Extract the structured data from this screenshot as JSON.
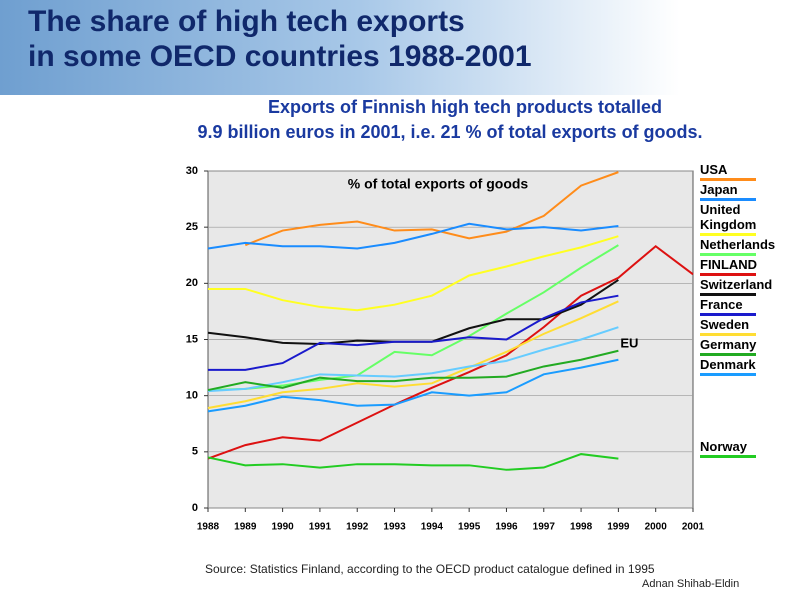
{
  "chart_data": {
    "type": "line",
    "title": [
      "The share of high tech exports",
      "in some OECD countries 1988-2001"
    ],
    "subtitle": [
      "Exports of Finnish high tech products totalled",
      "9.9 billion euros in 2001, i.e. 21 % of total exports of goods."
    ],
    "ylabel": "% of total exports of goods",
    "source": "Source: Statistics Finland, according to the OECD product catalogue defined in 1995",
    "author": "Adnan Shihab-Eldin",
    "x": [
      1988,
      1989,
      1990,
      1991,
      1992,
      1993,
      1994,
      1995,
      1996,
      1997,
      1998,
      1999,
      2000,
      2001
    ],
    "xlim": [
      1988,
      2001
    ],
    "xticks": [
      1988,
      1989,
      1990,
      1991,
      1992,
      1993,
      1994,
      1995,
      1996,
      1997,
      1998,
      1999,
      2000,
      2001
    ],
    "ylim": [
      0,
      30
    ],
    "yticks": [
      0,
      5,
      10,
      15,
      20,
      25,
      30
    ],
    "grid": true,
    "series": [
      {
        "name": "USA",
        "color": "#ff8c1a",
        "values": [
          null,
          23.4,
          24.7,
          25.2,
          25.5,
          24.7,
          24.8,
          24.0,
          24.6,
          26.0,
          28.7,
          29.9,
          null,
          null
        ]
      },
      {
        "name": "Japan",
        "color": "#1a8cff",
        "values": [
          23.1,
          23.6,
          23.3,
          23.3,
          23.1,
          23.6,
          24.4,
          25.3,
          24.8,
          25.0,
          24.7,
          25.1,
          null,
          null
        ]
      },
      {
        "name": "United Kingdom",
        "color": "#ffff22",
        "values": [
          19.5,
          19.5,
          18.5,
          17.9,
          17.6,
          18.1,
          18.9,
          20.7,
          21.5,
          22.4,
          23.2,
          24.2,
          null,
          null
        ]
      },
      {
        "name": "Netherlands",
        "color": "#66ff66",
        "values": [
          10.5,
          10.6,
          10.9,
          11.4,
          11.8,
          13.9,
          13.6,
          15.3,
          17.3,
          19.2,
          21.4,
          23.4,
          null,
          null
        ]
      },
      {
        "name": "FINLAND",
        "color": "#dd1111",
        "values": [
          4.4,
          5.6,
          6.3,
          6.0,
          7.6,
          9.2,
          10.7,
          12.1,
          13.6,
          16.1,
          18.9,
          20.5,
          23.3,
          20.8
        ]
      },
      {
        "name": "Switzerland",
        "color": "#111111",
        "values": [
          15.6,
          15.2,
          14.7,
          14.6,
          14.9,
          14.8,
          14.8,
          16.0,
          16.8,
          16.8,
          18.1,
          20.3,
          null,
          null
        ]
      },
      {
        "name": "France",
        "color": "#1a1acc",
        "values": [
          12.3,
          12.3,
          12.9,
          14.7,
          14.5,
          14.8,
          14.8,
          15.2,
          15.0,
          16.9,
          18.3,
          18.9,
          null,
          null
        ]
      },
      {
        "name": "Sweden",
        "color": "#ffdd33",
        "values": [
          8.9,
          9.5,
          10.3,
          10.6,
          11.1,
          10.8,
          11.1,
          12.5,
          13.9,
          15.5,
          16.9,
          18.4,
          null,
          null
        ]
      },
      {
        "name": "EU",
        "color": "#66ccff",
        "legend": false,
        "values": [
          10.4,
          10.6,
          11.2,
          11.9,
          11.8,
          11.7,
          12.0,
          12.6,
          13.1,
          14.1,
          15.0,
          16.1,
          null,
          null
        ]
      },
      {
        "name": "Germany",
        "color": "#22aa22",
        "values": [
          10.5,
          11.2,
          10.7,
          11.6,
          11.3,
          11.3,
          11.6,
          11.6,
          11.7,
          12.6,
          13.2,
          14.0,
          null,
          null
        ]
      },
      {
        "name": "Denmark",
        "color": "#1a9cff",
        "values": [
          8.6,
          9.1,
          9.9,
          9.6,
          9.1,
          9.2,
          10.3,
          10.0,
          10.3,
          11.9,
          12.5,
          13.2,
          null,
          null
        ]
      },
      {
        "name": "Norway",
        "color": "#22cc22",
        "values": [
          4.5,
          3.8,
          3.9,
          3.6,
          3.9,
          3.9,
          3.8,
          3.8,
          3.4,
          3.6,
          4.8,
          4.4,
          null,
          null
        ]
      }
    ]
  }
}
